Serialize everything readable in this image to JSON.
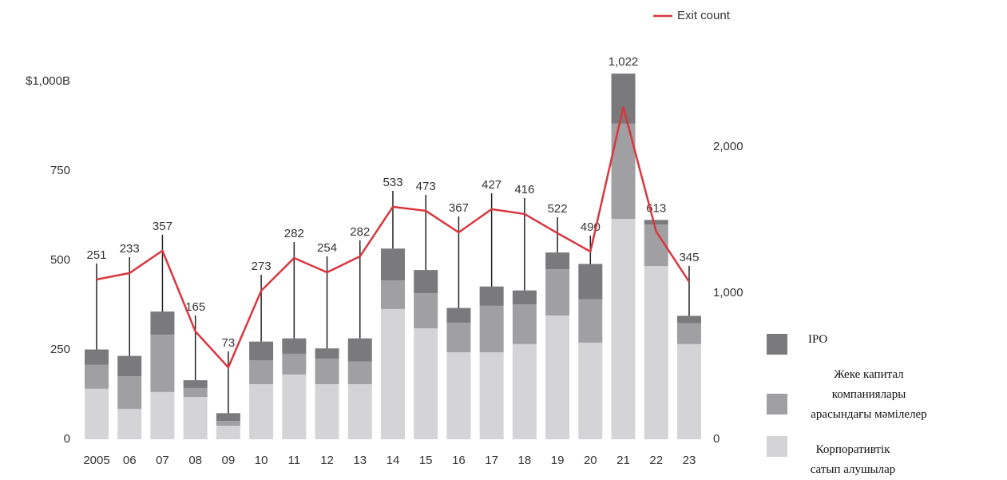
{
  "chart_data": {
    "type": "bar_line",
    "categories": [
      "2005",
      "06",
      "07",
      "08",
      "09",
      "10",
      "11",
      "12",
      "13",
      "14",
      "15",
      "16",
      "17",
      "18",
      "19",
      "20",
      "21",
      "22",
      "23"
    ],
    "series": [
      {
        "name": "Корпоративтік сатып алушылар",
        "color": "#d4d4d6",
        "values": [
          141,
          85,
          132,
          118,
          38,
          154,
          181,
          154,
          154,
          364,
          310,
          243,
          243,
          266,
          346,
          270,
          616,
          484,
          266
        ]
      },
      {
        "name": "Жеке капитал компаниялары арасындағы мәмілелер",
        "color": "#a0a0a2",
        "values": [
          67,
          91,
          160,
          25,
          13,
          67,
          58,
          71,
          63,
          80,
          98,
          83,
          130,
          111,
          129,
          121,
          266,
          116,
          58
        ]
      },
      {
        "name": "IPO",
        "color": "#7a7a7c",
        "values": [
          43,
          57,
          65,
          22,
          22,
          52,
          43,
          29,
          65,
          89,
          65,
          41,
          54,
          39,
          47,
          99,
          140,
          13,
          21
        ]
      },
      {
        "name": "Exit count",
        "color": "#d9363e",
        "axis": "y2",
        "type": "line",
        "values": [
          1093,
          1137,
          1290,
          738,
          492,
          1016,
          1240,
          1142,
          1251,
          1590,
          1563,
          1415,
          1574,
          1541,
          1410,
          1284,
          2273,
          1421,
          1077
        ]
      }
    ],
    "totals": {
      "values": [
        251,
        233,
        357,
        165,
        73,
        273,
        282,
        254,
        282,
        533,
        473,
        367,
        427,
        416,
        522,
        490,
        1022,
        613,
        345
      ],
      "value_labels": [
        "251",
        "233",
        "357",
        "165",
        "73",
        "273",
        "282",
        "254",
        "282",
        "533",
        "473",
        "367",
        "427",
        "416",
        "522",
        "490",
        "1,022",
        "613",
        "345"
      ]
    },
    "ylim": [
      0,
      1050
    ],
    "yticks": [
      0,
      250,
      500,
      750,
      {
        "value": 1000,
        "label": "$1,000B"
      }
    ],
    "y2lim": [
      0,
      2570
    ],
    "y2ticks": [
      0,
      {
        "value": 1000,
        "label": "1,000"
      },
      {
        "value": 2000,
        "label": "2,000"
      }
    ]
  }
}
